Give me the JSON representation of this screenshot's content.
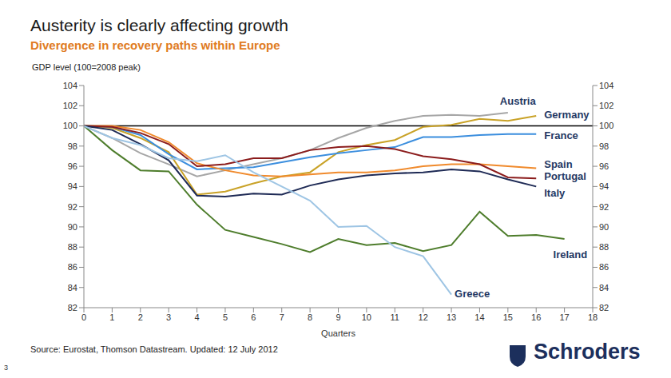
{
  "chart_data": {
    "type": "line",
    "title": "Austerity is clearly affecting growth",
    "subtitle": "Divergence in recovery paths within Europe",
    "y_label": "GDP level (100=2008 peak)",
    "x_label": "Quarters",
    "source": "Source: Eurostat, Thomson Datastream. Updated: 12 July 2012",
    "page": "3",
    "logo": "Schroders",
    "x": [
      0,
      1,
      2,
      3,
      4,
      5,
      6,
      7,
      8,
      9,
      10,
      11,
      12,
      13,
      14,
      15,
      16,
      17
    ],
    "xlim": [
      0,
      18
    ],
    "xticks": [
      0,
      1,
      2,
      3,
      4,
      5,
      6,
      7,
      8,
      9,
      10,
      11,
      12,
      13,
      14,
      15,
      16,
      17,
      18
    ],
    "ylim": [
      82,
      104
    ],
    "yticks": [
      82,
      84,
      86,
      88,
      90,
      92,
      94,
      96,
      98,
      100,
      102,
      104
    ],
    "y2lim": [
      82,
      104
    ],
    "y2ticks": [
      82,
      84,
      86,
      88,
      90,
      92,
      94,
      96,
      98,
      100,
      102,
      104
    ],
    "reference_line": 100,
    "grid": false,
    "series": [
      {
        "name": "Austria",
        "color": "#a6a6a6",
        "values": [
          100,
          98.8,
          97.3,
          96.2,
          95.0,
          95.6,
          96.2,
          96.8,
          97.6,
          98.8,
          99.8,
          100.5,
          101.0,
          101.1,
          101.0,
          101.3,
          null,
          null
        ]
      },
      {
        "name": "Germany",
        "color": "#c9a227",
        "values": [
          100,
          99.8,
          98.8,
          97.4,
          93.2,
          93.5,
          94.3,
          95.0,
          95.4,
          97.4,
          98.1,
          98.6,
          99.9,
          100.1,
          100.7,
          100.5,
          101.0,
          null
        ]
      },
      {
        "name": "France",
        "color": "#3b8ede",
        "values": [
          100,
          99.9,
          99.1,
          97.2,
          95.7,
          95.8,
          95.9,
          96.4,
          96.9,
          97.3,
          97.6,
          97.9,
          98.9,
          98.9,
          99.1,
          99.2,
          99.2,
          null
        ]
      },
      {
        "name": "Spain",
        "color": "#f08a2c",
        "values": [
          100,
          100.0,
          99.6,
          98.4,
          96.3,
          95.6,
          95.1,
          95.0,
          95.2,
          95.4,
          95.4,
          95.6,
          96.0,
          96.2,
          96.2,
          96.0,
          95.8,
          null
        ]
      },
      {
        "name": "Portugal",
        "color": "#8b1c1c",
        "values": [
          100,
          99.9,
          99.3,
          98.2,
          96.0,
          96.2,
          96.8,
          96.8,
          97.6,
          97.9,
          98.0,
          97.7,
          97.0,
          96.7,
          96.2,
          94.9,
          94.8,
          null
        ]
      },
      {
        "name": "Italy",
        "color": "#1e2a55",
        "values": [
          100,
          99.6,
          98.2,
          96.6,
          93.1,
          93.0,
          93.3,
          93.2,
          94.1,
          94.7,
          95.1,
          95.3,
          95.4,
          95.7,
          95.5,
          94.7,
          94.0,
          null
        ]
      },
      {
        "name": "Ireland",
        "color": "#4e7d2c",
        "values": [
          100,
          97.6,
          95.6,
          95.5,
          92.2,
          89.7,
          89.0,
          88.3,
          87.5,
          88.8,
          88.2,
          88.4,
          87.6,
          88.2,
          91.5,
          89.1,
          89.2,
          88.8
        ]
      },
      {
        "name": "Greece",
        "color": "#9ec5e4",
        "values": [
          100,
          98.8,
          98.1,
          96.8,
          96.5,
          97.1,
          95.4,
          94.0,
          92.6,
          90.0,
          90.1,
          88.0,
          87.1,
          83.3,
          null,
          null,
          null,
          null
        ]
      }
    ]
  }
}
